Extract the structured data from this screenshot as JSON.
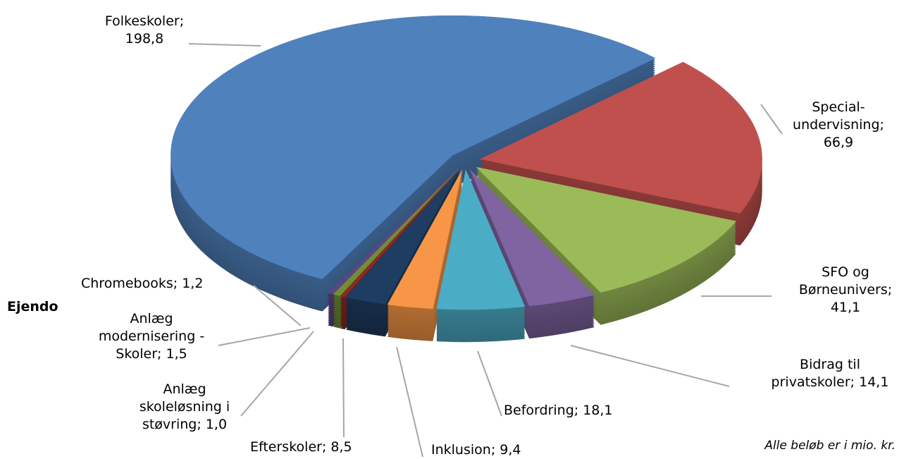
{
  "chart_data": {
    "type": "pie",
    "categories": [
      "Special-undervisning;",
      "SFO og Børneunivers;",
      "Bidrag til privatskoler;",
      "Befordring;",
      "Inklusion;",
      "Efterskoler;",
      "Anlæg skoleløsning i støvring;",
      "Anlæg modernisering - Skoler;",
      "Chromebooks;",
      "Folkeskoler;"
    ],
    "values": [
      66.9,
      41.1,
      14.1,
      18.1,
      9.4,
      8.5,
      1.0,
      1.5,
      1.2,
      198.8
    ],
    "value_labels": [
      "66,9",
      "41,1",
      "14,1",
      "18,1",
      "9,4",
      "8,5",
      "1,0",
      "1,5",
      "1,2",
      "198,8"
    ],
    "colors": [
      "#c0504d",
      "#9bbb59",
      "#8064a2",
      "#4bacc6",
      "#f79646",
      "#1f3d63",
      "#8b2a26",
      "#6f8f35",
      "#5b4680",
      "#4f81bd"
    ],
    "annotations": [
      "Ejendo",
      "Alle beløb er i mio. kr."
    ]
  }
}
